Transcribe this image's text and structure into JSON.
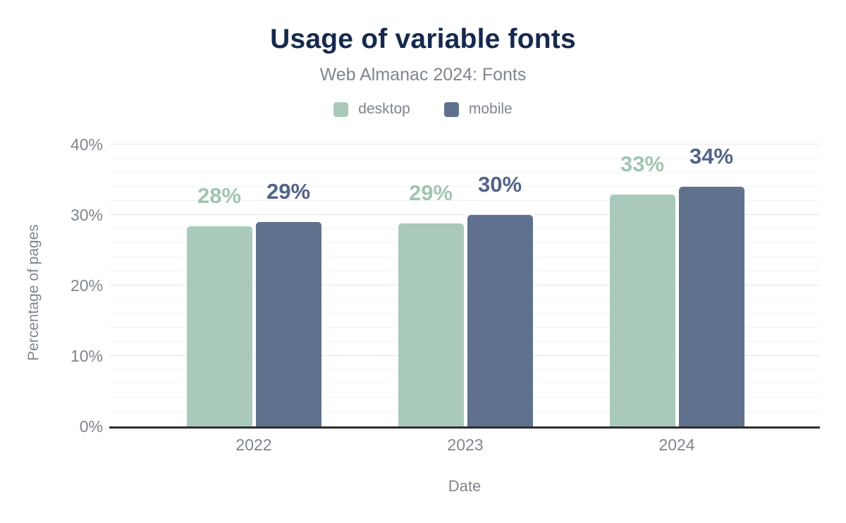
{
  "title": "Usage of variable fonts",
  "subtitle": "Web Almanac 2024: Fonts",
  "legend": {
    "items": [
      {
        "label": "desktop",
        "color": "#a9cabb"
      },
      {
        "label": "mobile",
        "color": "#5f718d"
      }
    ]
  },
  "chart_data": {
    "type": "bar",
    "title": "Usage of variable fonts",
    "subtitle": "Web Almanac 2024: Fonts",
    "categories": [
      "2022",
      "2023",
      "2024"
    ],
    "series": [
      {
        "name": "desktop",
        "values": [
          28.4,
          28.8,
          32.9
        ],
        "data_labels": [
          "28%",
          "29%",
          "33%"
        ],
        "color": "#a9cabb",
        "label_color": "#a1c5b3"
      },
      {
        "name": "mobile",
        "values": [
          29.0,
          30.0,
          34.0
        ],
        "data_labels": [
          "29%",
          "30%",
          "34%"
        ],
        "color": "#5f718d",
        "label_color": "#51648a"
      }
    ],
    "xlabel": "Date",
    "ylabel": "Percentage of pages",
    "ylim": [
      0,
      40
    ],
    "yticks": [
      {
        "value": 0,
        "label": "0%"
      },
      {
        "value": 10,
        "label": "10%"
      },
      {
        "value": 20,
        "label": "20%"
      },
      {
        "value": 30,
        "label": "30%"
      },
      {
        "value": 40,
        "label": "40%"
      }
    ],
    "minor_gridline_step": 2,
    "grid": "horizontal",
    "legend_position": "top"
  },
  "colors": {
    "background": "#ffffff",
    "title": "#16294d",
    "muted_text": "#7f858d",
    "axis_line": "#2e2e2e",
    "major_gridline": "#e7e8e9",
    "minor_gridline": "#f4f4f5"
  }
}
